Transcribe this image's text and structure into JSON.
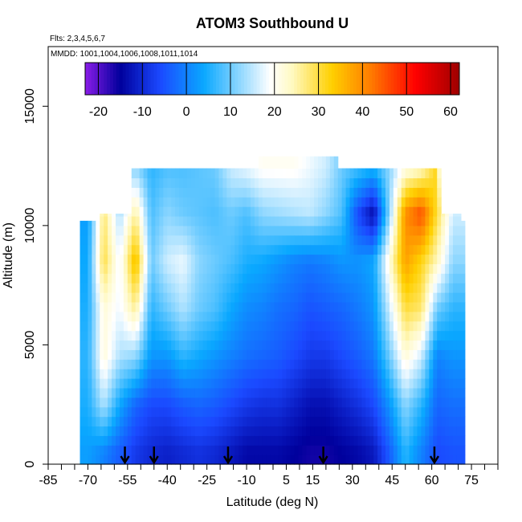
{
  "chart_data": {
    "type": "heatmap",
    "title": "ATOM3 Southbound U",
    "subtitle_flights": "Flts: 2,3,4,5,6,7",
    "subtitle_dates": "MMDD: 1001,1004,1006,1008,1011,1014",
    "xlabel": "Latitude (deg N)",
    "ylabel": "Altitude (m)",
    "xlim": [
      -85,
      85
    ],
    "ylim": [
      0,
      17500
    ],
    "x_ticks": [
      -85,
      -70,
      -55,
      -40,
      -25,
      -10,
      5,
      15,
      30,
      45,
      60,
      75
    ],
    "x_tick_labels": [
      "-85",
      "-70",
      "-55",
      "-40",
      "-25",
      "-10",
      "5",
      "15",
      "30",
      "45",
      "60",
      "75"
    ],
    "x_minor_ticks": [
      -80,
      -75,
      -65,
      -60,
      -50,
      -45,
      -35,
      -30,
      -20,
      -15,
      -5,
      0,
      10,
      20,
      25,
      35,
      40,
      50,
      55,
      65,
      70,
      80,
      85
    ],
    "y_ticks": [
      0,
      5000,
      10000,
      15000
    ],
    "y_tick_labels": [
      "0",
      "5000",
      "10000",
      "15000"
    ],
    "colorbar": {
      "min": -23,
      "max": 62,
      "ticks": [
        -20,
        -10,
        0,
        10,
        20,
        30,
        40,
        50,
        60
      ],
      "tick_labels": [
        "-20",
        "-10",
        "0",
        "10",
        "20",
        "30",
        "40",
        "50",
        "60"
      ],
      "colors": [
        "#8a1ce8",
        "#00009c",
        "#1b49ff",
        "#0aa8ff",
        "#ffffff",
        "#fff9c2",
        "#ffd000",
        "#ff7a00",
        "#ff0000",
        "#9e0000"
      ],
      "color_values": [
        -23,
        -15,
        -6,
        4,
        19,
        24,
        33,
        42,
        52,
        62
      ]
    },
    "profile_latitudes": [
      -56,
      -45,
      -17,
      19,
      61
    ],
    "u_field": {
      "lat_nodes": [
        -70,
        -64,
        -58,
        -52,
        -46,
        -40,
        -34,
        -28,
        -22,
        -16,
        -10,
        -4,
        2,
        8,
        14,
        20,
        26,
        32,
        38,
        44,
        50,
        56,
        62,
        68
      ],
      "alt_nodes": [
        500,
        2500,
        4500,
        6500,
        8500,
        10500,
        12500
      ],
      "u_values": [
        [
          3,
          0,
          -4,
          -8,
          -10,
          -11,
          -10,
          -9,
          -10,
          -12,
          -14,
          -14,
          -14,
          -15,
          -16,
          -16,
          -15,
          -14,
          -12,
          -4,
          6,
          0,
          -6,
          -5
        ],
        [
          5,
          14,
          4,
          -3,
          -6,
          -6,
          -4,
          -3,
          -4,
          -6,
          -8,
          -9,
          -9,
          -11,
          -13,
          -13,
          -11,
          -9,
          -6,
          2,
          12,
          6,
          -3,
          -2
        ],
        [
          6,
          22,
          14,
          12,
          2,
          2,
          6,
          4,
          2,
          0,
          -2,
          -3,
          -4,
          -6,
          -8,
          -8,
          -6,
          -4,
          -1,
          10,
          22,
          16,
          0,
          2
        ],
        [
          5,
          22,
          18,
          26,
          6,
          10,
          14,
          10,
          8,
          4,
          1,
          0,
          -2,
          -3,
          -5,
          -4,
          -3,
          -1,
          2,
          16,
          30,
          28,
          10,
          6
        ],
        [
          4,
          30,
          18,
          36,
          10,
          16,
          18,
          12,
          10,
          8,
          5,
          4,
          2,
          0,
          -1,
          0,
          2,
          2,
          4,
          22,
          38,
          32,
          24,
          12
        ],
        [
          3,
          28,
          14,
          26,
          8,
          12,
          10,
          9,
          8,
          10,
          8,
          12,
          13,
          14,
          15,
          12,
          8,
          -6,
          -14,
          12,
          40,
          46,
          30,
          16
        ],
        [
          null,
          null,
          6,
          12,
          6,
          8,
          8,
          9,
          10,
          16,
          18,
          20,
          20,
          20,
          18,
          16,
          10,
          8,
          6,
          12,
          20,
          22,
          null,
          null
        ]
      ]
    }
  }
}
